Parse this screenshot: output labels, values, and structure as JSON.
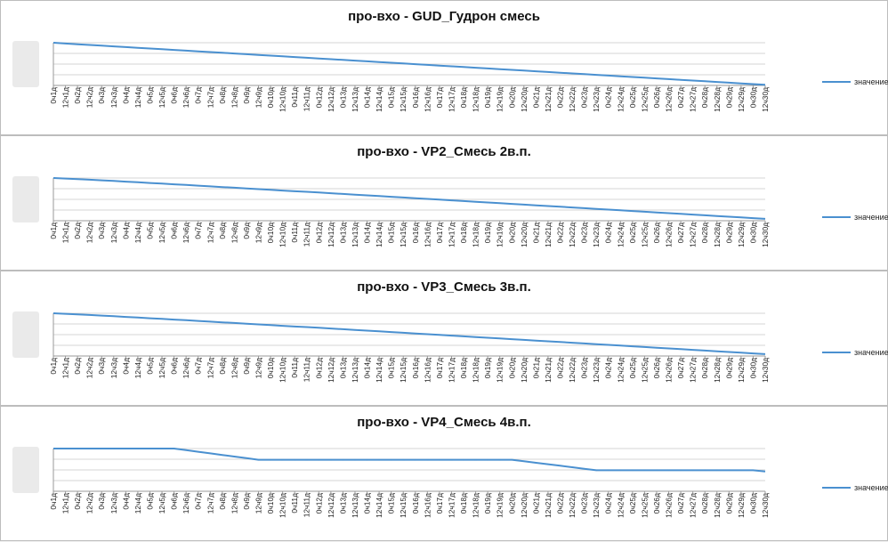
{
  "legend_label": "значение",
  "x_categories": [
    "0ч1д",
    "12ч1д",
    "0ч2д",
    "12ч2д",
    "0ч3д",
    "12ч3д",
    "0ч4д",
    "12ч4д",
    "0ч5д",
    "12ч5д",
    "0ч6д",
    "12ч6д",
    "0ч7д",
    "12ч7д",
    "0ч8д",
    "12ч8д",
    "0ч9д",
    "12ч9д",
    "0ч10д",
    "12ч10д",
    "0ч11д",
    "12ч11д",
    "0ч12д",
    "12ч12д",
    "0ч13д",
    "12ч13д",
    "0ч14д",
    "12ч14д",
    "0ч15д",
    "12ч15д",
    "0ч16д",
    "12ч16д",
    "0ч17д",
    "12ч17д",
    "0ч18д",
    "12ч18д",
    "0ч19д",
    "12ч19д",
    "0ч20д",
    "12ч20д",
    "0ч21д",
    "12ч21д",
    "0ч22д",
    "12ч22д",
    "0ч23д",
    "12ч23д",
    "0ч24д",
    "12ч24д",
    "0ч25д",
    "12ч25д",
    "0ч26д",
    "12ч26д",
    "0ч27д",
    "12ч27д",
    "0ч28д",
    "12ч28д",
    "0ч29д",
    "12ч29д",
    "0ч30д",
    "12ч30д"
  ],
  "chart_data": [
    {
      "type": "line",
      "title": "про-вхо - GUD_Гудрон смесь",
      "series": [
        {
          "name": "значение",
          "color": "#4a90d0"
        }
      ],
      "grid": true,
      "legend_position": "right",
      "y_tick_labels_legible": false,
      "values": [
        100,
        99.2,
        98.5,
        97.8,
        97.1,
        96.4,
        95.7,
        95,
        94.3,
        93.6,
        92.9,
        92.2,
        91.5,
        90.8,
        90.1,
        89.4,
        88.7,
        88,
        87.3,
        86.6,
        85.9,
        85.2,
        84.5,
        83.8,
        83.1,
        82.4,
        81.7,
        81,
        80.3,
        79.6,
        78.9,
        78.2,
        77.5,
        76.8,
        76.1,
        75.4,
        74.7,
        74,
        73.3,
        72.6,
        71.9,
        71.2,
        70.5,
        69.8,
        69.1,
        68.4,
        67.7,
        67,
        66.3,
        65.6,
        64.9,
        64.2,
        63.5,
        62.8,
        62.1,
        61.4,
        60.7,
        60,
        59.3,
        58.6
      ],
      "ylim": [
        58,
        100
      ]
    },
    {
      "type": "line",
      "title": "про-вхо - VP2_Смесь 2в.п.",
      "series": [
        {
          "name": "значение",
          "color": "#4a90d0"
        }
      ],
      "grid": true,
      "legend_position": "right",
      "y_tick_labels_legible": false,
      "values": [
        100,
        99.5,
        98.9,
        98.3,
        97.7,
        97.1,
        96.4,
        95.8,
        95.1,
        94.5,
        93.8,
        93.2,
        92.5,
        91.8,
        91.1,
        90.5,
        89.8,
        89.1,
        88.4,
        87.7,
        87,
        86.4,
        85.7,
        85,
        84.3,
        83.6,
        82.9,
        82.2,
        81.5,
        80.8,
        80.1,
        79.4,
        78.7,
        78,
        77.3,
        76.6,
        75.9,
        75.2,
        74.5,
        73.8,
        73.1,
        72.4,
        71.7,
        71,
        70.3,
        69.6,
        68.9,
        68.2,
        67.5,
        66.8,
        66.1,
        65.4,
        64.7,
        64,
        63.3,
        62.6,
        61.9,
        61.2,
        60.5,
        59.8
      ],
      "ylim": [
        58,
        100
      ]
    },
    {
      "type": "line",
      "title": "про-вхо - VP3_Смесь 3в.п.",
      "series": [
        {
          "name": "значение",
          "color": "#4a90d0"
        }
      ],
      "grid": true,
      "legend_position": "right",
      "y_tick_labels_legible": false,
      "values": [
        100,
        99.5,
        98.9,
        98.3,
        97.7,
        97.1,
        96.4,
        95.8,
        95.1,
        94.5,
        93.8,
        93.2,
        92.5,
        91.8,
        91.1,
        90.5,
        89.8,
        89.1,
        88.4,
        87.7,
        87,
        86.4,
        85.7,
        85,
        84.3,
        83.6,
        82.9,
        82.2,
        81.5,
        80.8,
        80.1,
        79.4,
        78.7,
        78,
        77.3,
        76.6,
        75.9,
        75.2,
        74.5,
        73.8,
        73.1,
        72.4,
        71.7,
        71,
        70.3,
        69.6,
        68.9,
        68.2,
        67.5,
        66.8,
        66.1,
        65.4,
        64.7,
        64,
        63.3,
        62.6,
        61.9,
        61.2,
        60.5,
        59.8
      ],
      "ylim": [
        58,
        100
      ]
    },
    {
      "type": "line",
      "title": "про-вхо - VP4_Смесь 4в.п.",
      "series": [
        {
          "name": "значение",
          "color": "#4a90d0"
        }
      ],
      "grid": true,
      "legend_position": "right",
      "y_tick_labels_legible": false,
      "values": [
        100,
        100,
        100,
        100,
        100,
        100,
        100,
        100,
        100,
        100,
        100,
        98.5,
        97,
        95.5,
        94,
        92.5,
        91,
        89.5,
        89.5,
        89.5,
        89.5,
        89.5,
        89.5,
        89.5,
        89.5,
        89.5,
        89.5,
        89.5,
        89.5,
        89.5,
        89.5,
        89.5,
        89.5,
        89.5,
        89.5,
        89.5,
        89.5,
        89.5,
        89.5,
        88.1,
        86.7,
        85.3,
        83.9,
        82.5,
        81.1,
        79.7,
        79.7,
        79.7,
        79.7,
        79.7,
        79.7,
        79.7,
        79.7,
        79.7,
        79.7,
        79.7,
        79.7,
        79.7,
        79.7,
        78.5
      ],
      "ylim": [
        60,
        100
      ]
    }
  ]
}
